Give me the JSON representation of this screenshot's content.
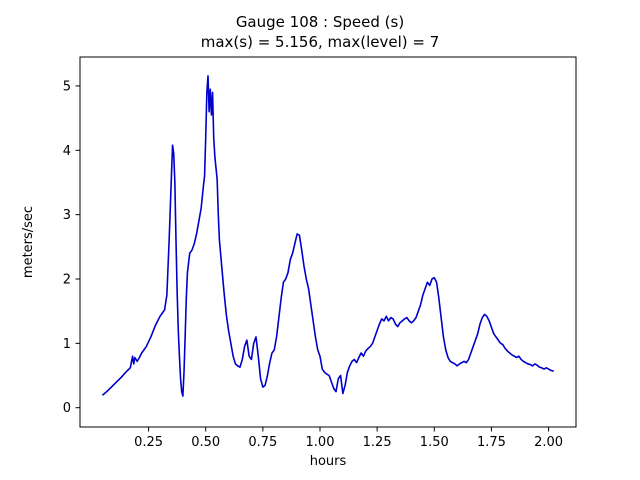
{
  "figure": {
    "title": "Gauge 108 : Speed (s)",
    "subtitle": "max(s) =   5.156,    max(level) = 7"
  },
  "chart_data": {
    "type": "line",
    "title": "Gauge 108 : Speed (s)",
    "subtitle": "max(s) =   5.156,    max(level) = 7",
    "xlabel": "hours",
    "ylabel": "meters/sec",
    "line_color": "#0000cc",
    "axis_color": "#000000",
    "background_color": "#ffffff",
    "grid": false,
    "legend": "none",
    "xlim": [
      -0.05,
      2.12
    ],
    "ylim": [
      -0.3,
      5.45
    ],
    "x_ticks": [
      0.25,
      0.5,
      0.75,
      1.0,
      1.25,
      1.5,
      1.75,
      2.0
    ],
    "x_tick_labels": [
      "0.25",
      "0.50",
      "0.75",
      "1.00",
      "1.25",
      "1.50",
      "1.75",
      "2.00"
    ],
    "y_ticks": [
      0,
      1,
      2,
      3,
      4,
      5
    ],
    "y_tick_labels": [
      "0",
      "1",
      "2",
      "3",
      "4",
      "5"
    ],
    "max_s": 5.156,
    "max_level": 7,
    "points": [
      [
        0.05,
        0.2
      ],
      [
        0.07,
        0.26
      ],
      [
        0.09,
        0.33
      ],
      [
        0.11,
        0.4
      ],
      [
        0.13,
        0.47
      ],
      [
        0.15,
        0.55
      ],
      [
        0.17,
        0.62
      ],
      [
        0.18,
        0.8
      ],
      [
        0.185,
        0.68
      ],
      [
        0.19,
        0.78
      ],
      [
        0.2,
        0.72
      ],
      [
        0.21,
        0.78
      ],
      [
        0.22,
        0.85
      ],
      [
        0.24,
        0.95
      ],
      [
        0.26,
        1.1
      ],
      [
        0.28,
        1.28
      ],
      [
        0.3,
        1.42
      ],
      [
        0.31,
        1.47
      ],
      [
        0.32,
        1.52
      ],
      [
        0.33,
        1.75
      ],
      [
        0.34,
        2.6
      ],
      [
        0.35,
        3.6
      ],
      [
        0.355,
        4.08
      ],
      [
        0.36,
        3.95
      ],
      [
        0.365,
        3.5
      ],
      [
        0.37,
        2.6
      ],
      [
        0.375,
        1.8
      ],
      [
        0.38,
        1.2
      ],
      [
        0.385,
        0.8
      ],
      [
        0.39,
        0.45
      ],
      [
        0.395,
        0.25
      ],
      [
        0.4,
        0.18
      ],
      [
        0.405,
        0.55
      ],
      [
        0.41,
        1.1
      ],
      [
        0.415,
        1.7
      ],
      [
        0.42,
        2.1
      ],
      [
        0.43,
        2.4
      ],
      [
        0.44,
        2.45
      ],
      [
        0.45,
        2.55
      ],
      [
        0.46,
        2.7
      ],
      [
        0.47,
        2.9
      ],
      [
        0.48,
        3.1
      ],
      [
        0.49,
        3.45
      ],
      [
        0.495,
        3.6
      ],
      [
        0.5,
        4.2
      ],
      [
        0.505,
        4.9
      ],
      [
        0.51,
        5.156
      ],
      [
        0.515,
        4.6
      ],
      [
        0.52,
        4.95
      ],
      [
        0.525,
        4.55
      ],
      [
        0.53,
        4.9
      ],
      [
        0.535,
        4.2
      ],
      [
        0.54,
        3.9
      ],
      [
        0.55,
        3.55
      ],
      [
        0.555,
        3.0
      ],
      [
        0.56,
        2.6
      ],
      [
        0.57,
        2.2
      ],
      [
        0.58,
        1.8
      ],
      [
        0.59,
        1.45
      ],
      [
        0.6,
        1.2
      ],
      [
        0.61,
        1.0
      ],
      [
        0.62,
        0.8
      ],
      [
        0.63,
        0.68
      ],
      [
        0.64,
        0.65
      ],
      [
        0.65,
        0.63
      ],
      [
        0.66,
        0.75
      ],
      [
        0.67,
        0.95
      ],
      [
        0.68,
        1.05
      ],
      [
        0.69,
        0.8
      ],
      [
        0.7,
        0.75
      ],
      [
        0.71,
        1.0
      ],
      [
        0.72,
        1.1
      ],
      [
        0.73,
        0.8
      ],
      [
        0.74,
        0.45
      ],
      [
        0.75,
        0.32
      ],
      [
        0.76,
        0.35
      ],
      [
        0.77,
        0.5
      ],
      [
        0.78,
        0.7
      ],
      [
        0.79,
        0.85
      ],
      [
        0.8,
        0.9
      ],
      [
        0.81,
        1.1
      ],
      [
        0.82,
        1.4
      ],
      [
        0.83,
        1.7
      ],
      [
        0.84,
        1.95
      ],
      [
        0.85,
        2.0
      ],
      [
        0.86,
        2.1
      ],
      [
        0.87,
        2.3
      ],
      [
        0.88,
        2.4
      ],
      [
        0.89,
        2.55
      ],
      [
        0.9,
        2.7
      ],
      [
        0.91,
        2.68
      ],
      [
        0.92,
        2.45
      ],
      [
        0.93,
        2.2
      ],
      [
        0.94,
        2.0
      ],
      [
        0.95,
        1.85
      ],
      [
        0.96,
        1.6
      ],
      [
        0.97,
        1.35
      ],
      [
        0.98,
        1.1
      ],
      [
        0.99,
        0.9
      ],
      [
        1.0,
        0.8
      ],
      [
        1.01,
        0.6
      ],
      [
        1.02,
        0.55
      ],
      [
        1.03,
        0.52
      ],
      [
        1.04,
        0.5
      ],
      [
        1.05,
        0.4
      ],
      [
        1.06,
        0.3
      ],
      [
        1.07,
        0.25
      ],
      [
        1.08,
        0.45
      ],
      [
        1.09,
        0.5
      ],
      [
        1.1,
        0.22
      ],
      [
        1.11,
        0.35
      ],
      [
        1.12,
        0.55
      ],
      [
        1.13,
        0.65
      ],
      [
        1.14,
        0.72
      ],
      [
        1.15,
        0.75
      ],
      [
        1.16,
        0.7
      ],
      [
        1.17,
        0.78
      ],
      [
        1.18,
        0.85
      ],
      [
        1.19,
        0.8
      ],
      [
        1.2,
        0.88
      ],
      [
        1.21,
        0.92
      ],
      [
        1.22,
        0.95
      ],
      [
        1.23,
        1.0
      ],
      [
        1.24,
        1.1
      ],
      [
        1.25,
        1.2
      ],
      [
        1.26,
        1.3
      ],
      [
        1.27,
        1.38
      ],
      [
        1.28,
        1.35
      ],
      [
        1.29,
        1.42
      ],
      [
        1.3,
        1.35
      ],
      [
        1.31,
        1.4
      ],
      [
        1.32,
        1.38
      ],
      [
        1.33,
        1.3
      ],
      [
        1.34,
        1.26
      ],
      [
        1.35,
        1.32
      ],
      [
        1.36,
        1.35
      ],
      [
        1.37,
        1.38
      ],
      [
        1.38,
        1.4
      ],
      [
        1.39,
        1.35
      ],
      [
        1.4,
        1.32
      ],
      [
        1.41,
        1.35
      ],
      [
        1.42,
        1.4
      ],
      [
        1.43,
        1.5
      ],
      [
        1.44,
        1.6
      ],
      [
        1.45,
        1.75
      ],
      [
        1.46,
        1.85
      ],
      [
        1.47,
        1.95
      ],
      [
        1.48,
        1.9
      ],
      [
        1.49,
        2.0
      ],
      [
        1.5,
        2.02
      ],
      [
        1.51,
        1.95
      ],
      [
        1.52,
        1.7
      ],
      [
        1.53,
        1.4
      ],
      [
        1.54,
        1.1
      ],
      [
        1.55,
        0.9
      ],
      [
        1.56,
        0.78
      ],
      [
        1.57,
        0.72
      ],
      [
        1.58,
        0.7
      ],
      [
        1.59,
        0.68
      ],
      [
        1.6,
        0.65
      ],
      [
        1.61,
        0.68
      ],
      [
        1.62,
        0.7
      ],
      [
        1.63,
        0.72
      ],
      [
        1.64,
        0.7
      ],
      [
        1.65,
        0.75
      ],
      [
        1.66,
        0.85
      ],
      [
        1.67,
        0.95
      ],
      [
        1.68,
        1.05
      ],
      [
        1.69,
        1.15
      ],
      [
        1.7,
        1.3
      ],
      [
        1.71,
        1.4
      ],
      [
        1.72,
        1.45
      ],
      [
        1.73,
        1.42
      ],
      [
        1.74,
        1.35
      ],
      [
        1.75,
        1.25
      ],
      [
        1.76,
        1.15
      ],
      [
        1.77,
        1.1
      ],
      [
        1.78,
        1.05
      ],
      [
        1.79,
        1.0
      ],
      [
        1.8,
        0.98
      ],
      [
        1.81,
        0.92
      ],
      [
        1.82,
        0.88
      ],
      [
        1.83,
        0.85
      ],
      [
        1.84,
        0.82
      ],
      [
        1.85,
        0.8
      ],
      [
        1.86,
        0.78
      ],
      [
        1.87,
        0.8
      ],
      [
        1.88,
        0.75
      ],
      [
        1.89,
        0.72
      ],
      [
        1.9,
        0.7
      ],
      [
        1.91,
        0.68
      ],
      [
        1.92,
        0.67
      ],
      [
        1.93,
        0.65
      ],
      [
        1.94,
        0.68
      ],
      [
        1.95,
        0.66
      ],
      [
        1.96,
        0.63
      ],
      [
        1.97,
        0.62
      ],
      [
        1.98,
        0.6
      ],
      [
        1.99,
        0.62
      ],
      [
        2.0,
        0.6
      ],
      [
        2.01,
        0.58
      ],
      [
        2.02,
        0.57
      ]
    ]
  }
}
